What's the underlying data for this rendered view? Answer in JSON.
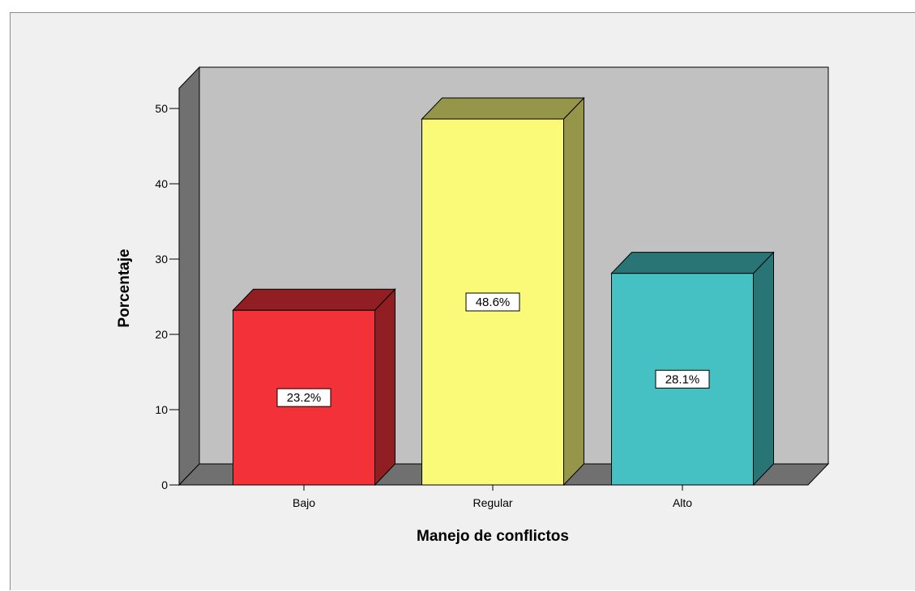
{
  "chart_data": {
    "type": "bar",
    "categories": [
      "Bajo",
      "Regular",
      "Alto"
    ],
    "values": [
      23.2,
      48.6,
      28.1
    ],
    "data_labels": [
      "23.2%",
      "48.6%",
      "28.1%"
    ],
    "xlabel": "Manejo de conflictos",
    "ylabel": "Porcentaje",
    "ylim": [
      0,
      50
    ],
    "yticks": [
      0,
      10,
      20,
      30,
      40,
      50
    ],
    "style": "3d",
    "colors": {
      "bars_front": [
        "#f23238",
        "#fafa78",
        "#45c1c4"
      ],
      "bars_side": [
        "#911e22",
        "#96964a",
        "#297475"
      ],
      "wall": "#c1c1c1",
      "side_wall": "#707070",
      "background": "#f0f0f0"
    }
  }
}
